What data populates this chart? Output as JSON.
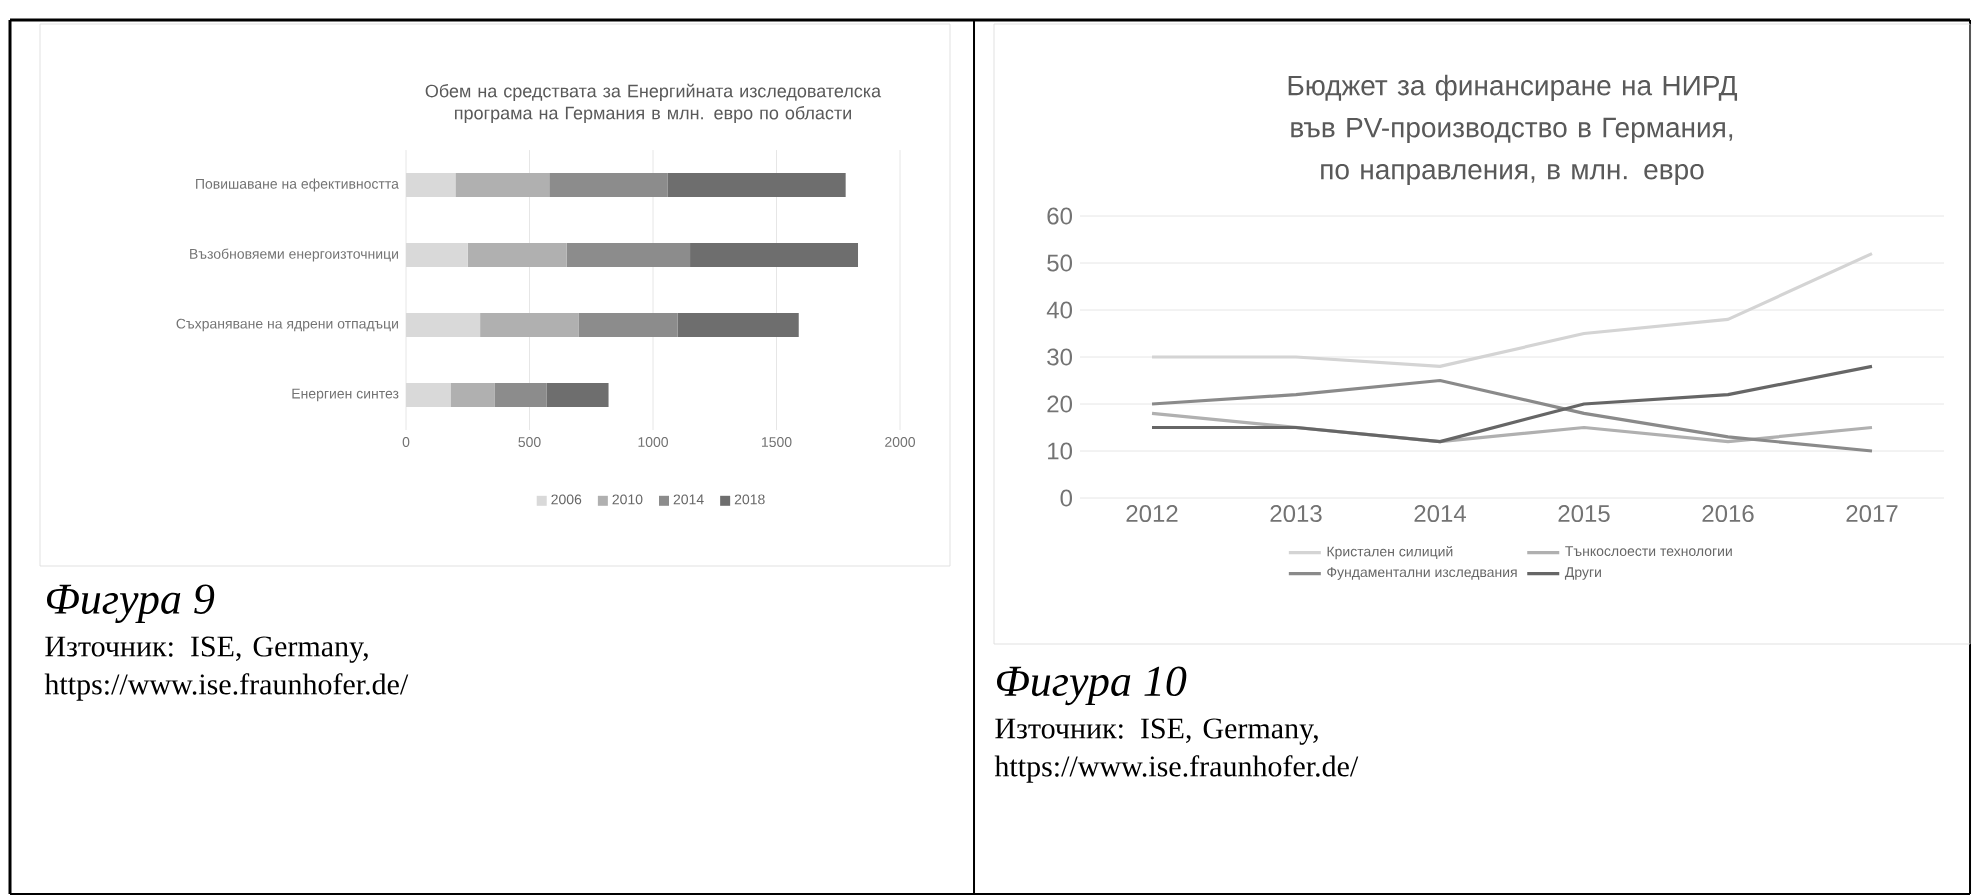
{
  "chart_data": [
    {
      "type": "bar",
      "orientation": "horizontal",
      "stacked": true,
      "title": "Обем на средствата за Енергийната изследователска програма на Германия в млн. евро по области",
      "categories": [
        "Повишаване на ефективността",
        "Възобновяеми енергоизточници",
        "Съхраняване на ядрени отпадъци",
        "Енергиен синтез"
      ],
      "series": [
        {
          "name": "2006",
          "color": "#d9d9d9",
          "values": [
            200,
            250,
            300,
            180
          ]
        },
        {
          "name": "2010",
          "color": "#b0b0b0",
          "values": [
            380,
            400,
            400,
            180
          ]
        },
        {
          "name": "2014",
          "color": "#8c8c8c",
          "values": [
            480,
            500,
            400,
            210
          ]
        },
        {
          "name": "2018",
          "color": "#6e6e6e",
          "values": [
            720,
            680,
            490,
            250
          ]
        }
      ],
      "xlim": [
        0,
        2000
      ],
      "xticks": [
        0,
        500,
        1000,
        1500,
        2000
      ],
      "grid": "x",
      "legend": "bottom",
      "annotations": [
        "Фигура 9",
        "Източник: ISE, Germany, https://www.ise.fraunhofer.de/"
      ]
    },
    {
      "type": "line",
      "title": "Бюджет за финансиране на НИРД във PV-производство в Германия, по направления, в млн. евро",
      "categories": [
        "2012",
        "2013",
        "2014",
        "2015",
        "2016",
        "2017"
      ],
      "series": [
        {
          "name": "Кристален силиций",
          "color": "#d4d4d4",
          "values": [
            30,
            30,
            28,
            35,
            38,
            52
          ]
        },
        {
          "name": "Тънкослоести технологии",
          "color": "#b0b0b0",
          "values": [
            18,
            15,
            12,
            15,
            12,
            15
          ]
        },
        {
          "name": "Фундаментални изследвания",
          "color": "#8a8a8a",
          "values": [
            20,
            22,
            25,
            18,
            13,
            10
          ]
        },
        {
          "name": "Други",
          "color": "#666666",
          "values": [
            15,
            15,
            12,
            20,
            22,
            28
          ]
        }
      ],
      "ylim": [
        0,
        60
      ],
      "yticks": [
        0,
        10,
        20,
        30,
        40,
        50,
        60
      ],
      "grid": "y",
      "legend": "bottom",
      "line_style": "solid",
      "marker": "none",
      "annotations": [
        "Фигура 10",
        "Източник: ISE, Germany, https://www.ise.fraunhofer.de/"
      ]
    }
  ]
}
